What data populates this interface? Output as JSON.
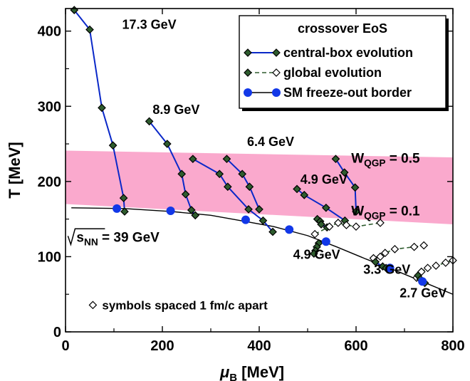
{
  "chart_data": {
    "type": "line",
    "xlabel": "μB [MeV]",
    "xlabel_main": "μ",
    "xlabel_sub": "B",
    "xlabel_unit": "[MeV]",
    "ylabel": "T [MeV]",
    "xlim": [
      0,
      800
    ],
    "ylim": [
      0,
      430
    ],
    "xticks": [
      0,
      200,
      400,
      600,
      800
    ],
    "yticks": [
      0,
      100,
      200,
      300,
      400
    ],
    "xticklabels": [
      "0",
      "200",
      "400",
      "600",
      "800"
    ],
    "yticklabels": [
      "0",
      "100",
      "200",
      "300",
      "400"
    ],
    "grid": false,
    "legend_position": "top-right",
    "legend": {
      "title": "crossover EoS",
      "items": [
        "central-box evolution",
        "global evolution",
        "SM freeze-out border"
      ]
    },
    "band": {
      "color": "#f9a0c8",
      "upper": [
        [
          0,
          241
        ],
        [
          800,
          232
        ]
      ],
      "lower": [
        [
          0,
          170
        ],
        [
          800,
          143
        ]
      ],
      "upper_label_main": "W",
      "upper_label_sub": "QGP",
      "upper_label_rest": " = 0.5",
      "lower_label_main": "W",
      "lower_label_sub": "QGP",
      "lower_label_rest": " = 0.1"
    },
    "series": [
      {
        "energy": "17.3 GeV",
        "kind": "central",
        "x": [
          18,
          50,
          75,
          98,
          120,
          122
        ],
        "y": [
          428,
          402,
          298,
          248,
          178,
          160
        ]
      },
      {
        "energy": "8.9 GeV",
        "kind": "central",
        "x": [
          173,
          210,
          240,
          248,
          260,
          268
        ],
        "y": [
          280,
          250,
          210,
          183,
          162,
          155
        ]
      },
      {
        "energy": "6.4 GeV",
        "kind": "central",
        "x": [
          263,
          318,
          335,
          378,
          408,
          428
        ],
        "y": [
          230,
          210,
          193,
          163,
          148,
          133
        ]
      },
      {
        "energy": "4.9 GeV",
        "kind": "central",
        "x": [
          333,
          365,
          380,
          400
        ],
        "y": [
          230,
          210,
          193,
          163
        ]
      },
      {
        "energy": "4.9 GeV",
        "kind": "central",
        "x": [
          478,
          493,
          538,
          577
        ],
        "y": [
          190,
          182,
          165,
          148
        ]
      },
      {
        "energy": "3.3 GeV",
        "kind": "central",
        "x": [
          558,
          576,
          598,
          600
        ],
        "y": [
          230,
          212,
          192,
          160
        ]
      },
      {
        "energy": "2.7 GeV",
        "kind": "central",
        "x": [
          520,
          526,
          528,
          540
        ],
        "y": [
          150,
          147,
          143,
          139
        ]
      },
      {
        "energy": "4.9 GeV",
        "kind": "global",
        "x": [
          515,
          545,
          563,
          580,
          600,
          650
        ],
        "y": [
          130,
          140,
          145,
          142,
          140,
          145
        ]
      },
      {
        "energy": "4.9 GeV",
        "kind": "central",
        "x": [
          523,
          519,
          516,
          513
        ],
        "y": [
          118,
          113,
          108,
          104
        ]
      },
      {
        "energy": "3.3 GeV",
        "kind": "global",
        "x": [
          636,
          650,
          660,
          680,
          720,
          740
        ],
        "y": [
          98,
          100,
          105,
          110,
          113,
          115
        ]
      },
      {
        "energy": "3.3 GeV",
        "kind": "central",
        "x": [
          640,
          655,
          662
        ],
        "y": [
          93,
          87,
          85
        ]
      },
      {
        "energy": "2.7 GeV",
        "kind": "global",
        "x": [
          725,
          735,
          748,
          765,
          785,
          800
        ],
        "y": [
          72,
          80,
          85,
          88,
          92,
          95
        ]
      },
      {
        "energy": "2.7 GeV",
        "kind": "central",
        "x": [
          728,
          733,
          738,
          742
        ],
        "y": [
          75,
          70,
          67,
          65
        ]
      }
    ],
    "freezeout_border": {
      "x": [
        12,
        120,
        220,
        300,
        370,
        430,
        500,
        560,
        620,
        680,
        740,
        800
      ],
      "y": [
        165,
        164,
        160,
        155,
        147,
        140,
        128,
        113,
        97,
        82,
        66,
        50
      ]
    },
    "freezeout_points": {
      "x": [
        106,
        217,
        372,
        462,
        538,
        670,
        737
      ],
      "y": [
        164,
        161,
        149,
        136,
        120,
        85,
        67
      ]
    },
    "annotations": [
      {
        "text": "17.3 GeV",
        "x": 117,
        "y": 403
      },
      {
        "text": "8.9 GeV",
        "x": 180,
        "y": 290
      },
      {
        "text": "6.4 GeV",
        "x": 375,
        "y": 247
      },
      {
        "text": "4.9 GeV",
        "x": 485,
        "y": 197
      },
      {
        "text": "4.9 GeV",
        "x": 470,
        "y": 97
      },
      {
        "text": "3.3 GeV",
        "x": 615,
        "y": 77
      },
      {
        "text": "2.7 GeV",
        "x": 690,
        "y": 46
      },
      {
        "text": "symbols spaced 1 fm/c apart",
        "x": 80,
        "y": 30
      }
    ],
    "sqrt_label": {
      "main": "s",
      "sub": "NN",
      "rest": " = 39 GeV"
    },
    "colors": {
      "line": "#0a28c8",
      "marker": "#2e5c2e",
      "freezeout": "#1238e8",
      "border": "#000000"
    }
  }
}
